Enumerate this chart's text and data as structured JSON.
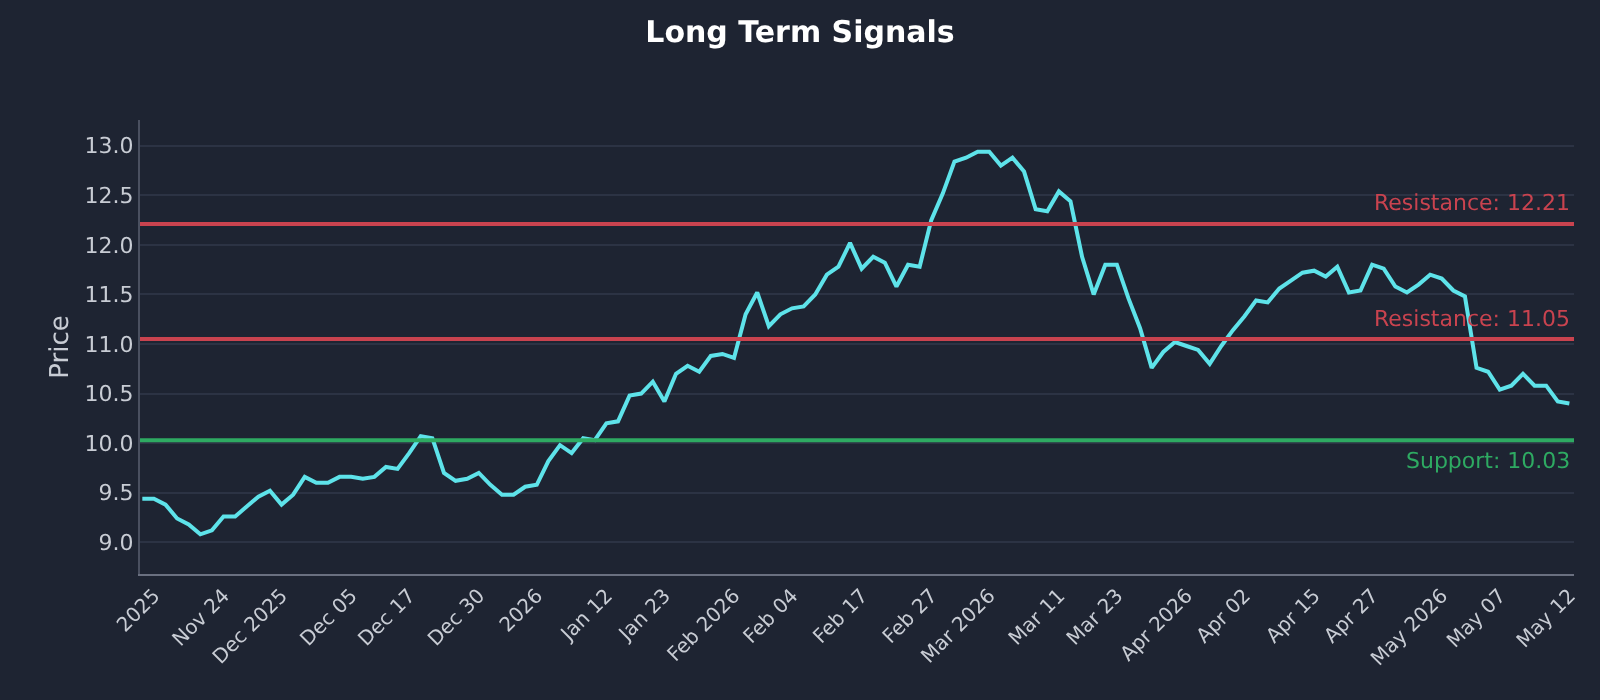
{
  "chart_data": {
    "type": "line",
    "title": "Long Term Signals",
    "ylabel": "Price",
    "categories": [
      null,
      "2025",
      null,
      null,
      null,
      null,
      null,
      "Nov 24",
      null,
      null,
      null,
      null,
      "Dec 2025",
      null,
      null,
      null,
      null,
      null,
      "Dec 05",
      null,
      null,
      null,
      null,
      "Dec 17",
      null,
      null,
      null,
      null,
      null,
      "Dec 30",
      null,
      null,
      null,
      null,
      "2026",
      null,
      null,
      null,
      null,
      null,
      "Jan 12",
      null,
      null,
      null,
      null,
      "Jan 23",
      null,
      null,
      null,
      null,
      null,
      "Feb 2026",
      null,
      null,
      null,
      null,
      "Feb 04",
      null,
      null,
      null,
      null,
      null,
      "Feb 17",
      null,
      null,
      null,
      null,
      null,
      "Feb 27",
      null,
      null,
      null,
      null,
      "Mar 2026",
      null,
      null,
      null,
      null,
      null,
      "Mar 11",
      null,
      null,
      null,
      null,
      "Mar 23",
      null,
      null,
      null,
      null,
      null,
      "Apr 2026",
      null,
      null,
      null,
      null,
      "Apr 02",
      null,
      null,
      null,
      null,
      null,
      "Apr 15",
      null,
      null,
      null,
      null,
      "Apr 27",
      null,
      null,
      null,
      null,
      null,
      "May 2026",
      null,
      null,
      null,
      null,
      "May 07",
      null,
      null,
      null,
      null,
      null,
      "May 12"
    ],
    "series": [
      {
        "color": "#5ee3ea",
        "values": [
          9.44,
          9.44,
          9.38,
          9.24,
          9.18,
          9.08,
          9.12,
          9.26,
          9.26,
          9.36,
          9.46,
          9.52,
          9.38,
          9.48,
          9.66,
          9.6,
          9.6,
          9.66,
          9.66,
          9.64,
          9.66,
          9.76,
          9.74,
          9.9,
          10.07,
          10.05,
          9.7,
          9.62,
          9.64,
          9.7,
          9.58,
          9.48,
          9.48,
          9.56,
          9.58,
          9.82,
          9.98,
          9.9,
          10.05,
          10.03,
          10.2,
          10.22,
          10.48,
          10.5,
          10.62,
          10.42,
          10.7,
          10.78,
          10.72,
          10.88,
          10.9,
          10.86,
          11.3,
          11.52,
          11.18,
          11.3,
          11.36,
          11.38,
          11.5,
          11.7,
          11.78,
          12.02,
          11.76,
          11.88,
          11.82,
          11.58,
          11.8,
          11.78,
          12.25,
          12.52,
          12.84,
          12.88,
          12.94,
          12.94,
          12.8,
          12.88,
          12.74,
          12.36,
          12.34,
          12.54,
          12.44,
          11.88,
          11.5,
          11.8,
          11.8,
          11.46,
          11.16,
          10.76,
          10.92,
          11.02,
          10.98,
          10.94,
          10.8,
          10.98,
          11.14,
          11.28,
          11.44,
          11.42,
          11.56,
          11.64,
          11.72,
          11.74,
          11.68,
          11.78,
          11.52,
          11.54,
          11.8,
          11.76,
          11.58,
          11.52,
          11.6,
          11.7,
          11.66,
          11.54,
          11.48,
          10.76,
          10.72,
          10.54,
          10.58,
          10.7,
          10.58,
          10.58,
          10.42,
          10.4
        ]
      }
    ],
    "ylim": [
      8.68,
      13.26
    ],
    "yticks": [
      {
        "value": 9,
        "label": "9.0"
      },
      {
        "value": 9.5,
        "label": "9.5"
      },
      {
        "value": 10,
        "label": "10.0"
      },
      {
        "value": 10.5,
        "label": "10.5"
      },
      {
        "value": 11,
        "label": "11.0"
      },
      {
        "value": 11.5,
        "label": "11.5"
      },
      {
        "value": 12,
        "label": "12.0"
      },
      {
        "value": 12.5,
        "label": "12.5"
      },
      {
        "value": 13,
        "label": "13.0"
      }
    ],
    "ref_lines": [
      {
        "axis": "y",
        "value": 12.21,
        "label": "Resistance: 12.21",
        "color": "#c9434f"
      },
      {
        "axis": "y",
        "value": 11.05,
        "label": "Resistance: 11.05",
        "color": "#c9434f"
      },
      {
        "axis": "y",
        "value": 10.03,
        "label": "Support: 10.03",
        "color": "#2eaa62"
      }
    ],
    "grid": "y",
    "marker": "none",
    "line_style": "solid"
  }
}
